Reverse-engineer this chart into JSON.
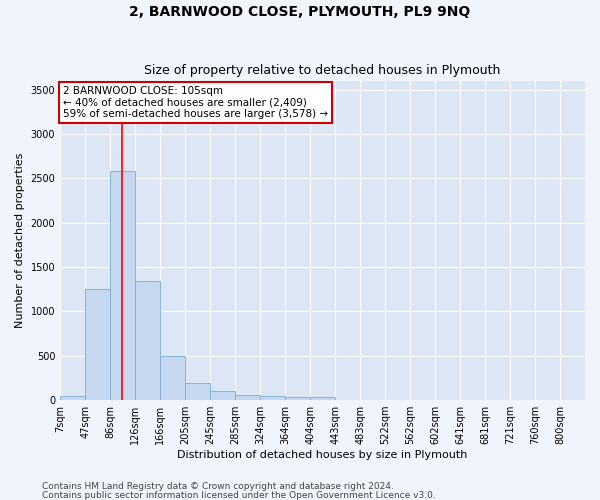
{
  "title": "2, BARNWOOD CLOSE, PLYMOUTH, PL9 9NQ",
  "subtitle": "Size of property relative to detached houses in Plymouth",
  "xlabel": "Distribution of detached houses by size in Plymouth",
  "ylabel": "Number of detached properties",
  "bin_labels": [
    "7sqm",
    "47sqm",
    "86sqm",
    "126sqm",
    "166sqm",
    "205sqm",
    "245sqm",
    "285sqm",
    "324sqm",
    "364sqm",
    "404sqm",
    "443sqm",
    "483sqm",
    "522sqm",
    "562sqm",
    "602sqm",
    "641sqm",
    "681sqm",
    "721sqm",
    "760sqm",
    "800sqm"
  ],
  "bar_heights": [
    50,
    1250,
    2580,
    1340,
    500,
    190,
    100,
    55,
    50,
    40,
    30,
    0,
    0,
    0,
    0,
    0,
    0,
    0,
    0,
    0
  ],
  "bar_color": "#c5d8f0",
  "bar_edge_color": "#7aadd4",
  "annotation_text": "2 BARNWOOD CLOSE: 105sqm\n← 40% of detached houses are smaller (2,409)\n59% of semi-detached houses are larger (3,578) →",
  "annotation_box_color": "#ffffff",
  "annotation_box_edge_color": "#cc0000",
  "ylim": [
    0,
    3600
  ],
  "yticks": [
    0,
    500,
    1000,
    1500,
    2000,
    2500,
    3000,
    3500
  ],
  "footer_line1": "Contains HM Land Registry data © Crown copyright and database right 2024.",
  "footer_line2": "Contains public sector information licensed under the Open Government Licence v3.0.",
  "fig_bg_color": "#f0f4fb",
  "plot_bg_color": "#dce6f5",
  "grid_color": "#ffffff",
  "title_fontsize": 10,
  "subtitle_fontsize": 9,
  "label_fontsize": 8,
  "tick_fontsize": 7,
  "annotation_fontsize": 7.5,
  "footer_fontsize": 6.5
}
